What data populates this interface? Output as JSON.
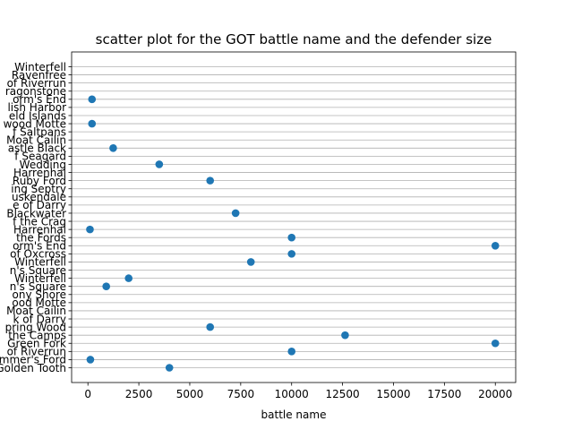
{
  "chart_data": {
    "type": "scatter",
    "title": "scatter plot for the GOT battle name and the defender size",
    "xlabel": "battle name",
    "ylabel": "",
    "xlim": [
      -800,
      21000
    ],
    "xticks": [
      0,
      2500,
      5000,
      7500,
      10000,
      12500,
      15000,
      17500,
      20000
    ],
    "xtick_labels": [
      "0",
      "2500",
      "5000",
      "7500",
      "10000",
      "12500",
      "15000",
      "17500",
      "20000"
    ],
    "grid": "horizontal",
    "color": "#1f77b4",
    "categories": [
      "Golden Tooth",
      "Mummer's Ford",
      "of Riverrun",
      "Green Fork",
      "the Camps",
      "pring Wood",
      "k of Darry",
      "Moat Cailin",
      "ood Motte",
      "ony Shore",
      "n's Square",
      "Winterfell",
      "n's Square",
      "Winterfell",
      "of Oxcross",
      "orm's End",
      "the Fords",
      "Harrenhal",
      "f the Crag",
      "Blackwater",
      "e of Darry",
      "uskendale",
      "ing Septry",
      "Ruby Ford",
      "Harrenhal",
      "Wedding",
      "f Seagard",
      "astle Black",
      "Moat Cailin",
      "f Saltpans",
      "wood Motte",
      "eld Islands",
      "lish Harbor",
      "orm's End",
      "ragonstone",
      "of Riverrun",
      "Ravenfree",
      "Winterfell"
    ],
    "points": [
      {
        "x": 4000,
        "y": "Golden Tooth"
      },
      {
        "x": 120,
        "y": "Mummer's Ford"
      },
      {
        "x": 10000,
        "y": "of Riverrun"
      },
      {
        "x": 20000,
        "y": "Green Fork"
      },
      {
        "x": 12625,
        "y": "the Camps"
      },
      {
        "x": 6000,
        "y": "pring Wood"
      },
      {
        "x": 900,
        "y": "n's Square"
      },
      {
        "x": 2000,
        "y": "Winterfell"
      },
      {
        "x": 10000,
        "y": "of Oxcross"
      },
      {
        "x": 20000,
        "y": "orm's End"
      },
      {
        "x": 10000,
        "y": "the Fords"
      },
      {
        "x": 100,
        "y": "Harrenhal"
      },
      {
        "x": 7250,
        "y": "Blackwater"
      },
      {
        "x": 6000,
        "y": "Ruby Ford"
      },
      {
        "x": 3500,
        "y": "Wedding"
      },
      {
        "x": 1240,
        "y": "astle Black"
      },
      {
        "x": 200,
        "y": "wood Motte"
      },
      {
        "x": 200,
        "y": "orm's End"
      },
      {
        "x": 8000,
        "y": "Winterfell"
      }
    ]
  }
}
